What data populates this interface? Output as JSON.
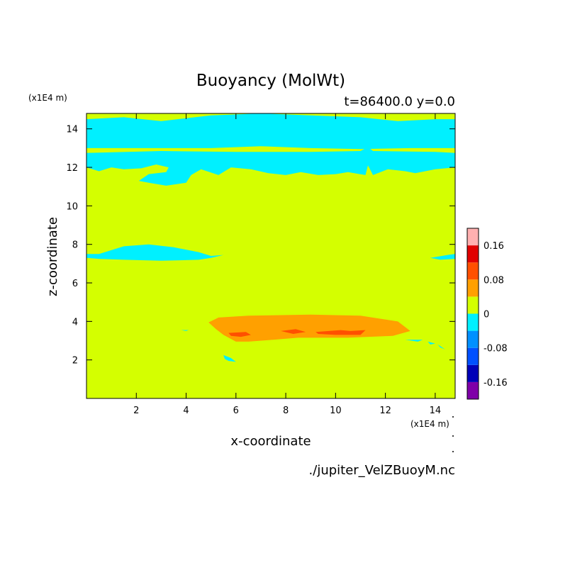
{
  "chart_data": {
    "type": "heatmap",
    "title": "Buoyancy (MolWt)",
    "subtitle": "t=86400.0 y=0.0",
    "xlabel": "x-coordinate",
    "ylabel": "z-coordinate",
    "x_scale_label": "(x1E4 m)",
    "y_scale_label": "(x1E4 m)",
    "xlim": [
      0,
      14.8
    ],
    "ylim": [
      0,
      14.8
    ],
    "x_ticks": [
      "2",
      "4",
      "6",
      "8",
      "10",
      "12",
      "14"
    ],
    "y_ticks": [
      "2",
      "4",
      "6",
      "8",
      "10",
      "12",
      "14"
    ],
    "x_tick_values": [
      2,
      4,
      6,
      8,
      10,
      12,
      14
    ],
    "y_tick_values": [
      2,
      4,
      6,
      8,
      10,
      12,
      14
    ],
    "source_file": "./jupiter_VelZBuoyM.nc",
    "grid": false,
    "legend": "right",
    "colorbar": {
      "levels": [
        -0.2,
        -0.16,
        -0.12,
        -0.08,
        -0.04,
        0,
        0.04,
        0.08,
        0.12,
        0.16,
        0.2
      ],
      "colors": [
        "#7f00a8",
        "#0000b8",
        "#0050ff",
        "#0090ff",
        "#00f0ff",
        "#d4ff00",
        "#ffa000",
        "#ff5000",
        "#e00000",
        "#ffb0b0"
      ],
      "tick_labels": [
        "0.16",
        "0.08",
        "0",
        "-0.08",
        "-0.16"
      ],
      "tick_values": [
        0.16,
        0.08,
        0,
        -0.08,
        -0.16
      ]
    },
    "background_value_color": "#d4ff00",
    "regions": [
      {
        "color": "#00f0ff",
        "value": "-0.04 to 0",
        "points": [
          [
            0,
            14.5
          ],
          [
            1.5,
            14.6
          ],
          [
            3,
            14.4
          ],
          [
            5,
            14.7
          ],
          [
            7,
            14.8
          ],
          [
            9,
            14.7
          ],
          [
            11,
            14.6
          ],
          [
            12.5,
            14.4
          ],
          [
            14,
            14.5
          ],
          [
            14.8,
            14.5
          ],
          [
            14.8,
            13.0
          ],
          [
            13,
            13.0
          ],
          [
            11,
            12.95
          ],
          [
            9,
            13.0
          ],
          [
            7,
            13.1
          ],
          [
            5,
            13.0
          ],
          [
            3,
            13.0
          ],
          [
            0,
            13.0
          ]
        ]
      },
      {
        "color": "#00f0ff",
        "value": "-0.04 to 0",
        "points": [
          [
            0,
            12.75
          ],
          [
            3,
            12.85
          ],
          [
            6,
            12.8
          ],
          [
            9,
            12.8
          ],
          [
            11,
            12.85
          ],
          [
            11.3,
            13.05
          ],
          [
            11.5,
            12.85
          ],
          [
            14,
            12.8
          ],
          [
            14.8,
            12.75
          ],
          [
            14.8,
            12.0
          ],
          [
            14,
            11.9
          ],
          [
            13.2,
            11.7
          ],
          [
            12.8,
            11.8
          ],
          [
            12.1,
            11.9
          ],
          [
            11.5,
            11.6
          ],
          [
            11.3,
            12.1
          ],
          [
            11.2,
            11.6
          ],
          [
            10.5,
            11.75
          ],
          [
            10,
            11.65
          ],
          [
            9.3,
            11.6
          ],
          [
            8.6,
            11.75
          ],
          [
            8,
            11.6
          ],
          [
            7.3,
            11.7
          ],
          [
            6.6,
            11.9
          ],
          [
            5.8,
            12.0
          ],
          [
            5.3,
            11.6
          ],
          [
            4.6,
            11.9
          ],
          [
            4.2,
            11.6
          ],
          [
            4.0,
            11.2
          ],
          [
            3.2,
            11.05
          ],
          [
            2.5,
            11.2
          ],
          [
            2.1,
            11.3
          ],
          [
            2.5,
            11.65
          ],
          [
            3.2,
            11.75
          ],
          [
            3.3,
            12.0
          ],
          [
            2.8,
            12.15
          ],
          [
            2.2,
            11.95
          ],
          [
            1.5,
            11.9
          ],
          [
            1.0,
            12.0
          ],
          [
            0.5,
            11.8
          ],
          [
            0,
            12.0
          ]
        ]
      },
      {
        "color": "#00f0ff",
        "value": "-0.04 to 0",
        "points": [
          [
            0.5,
            7.5
          ],
          [
            1.5,
            7.9
          ],
          [
            2.5,
            8.0
          ],
          [
            3.5,
            7.85
          ],
          [
            4.5,
            7.6
          ],
          [
            5.0,
            7.4
          ],
          [
            5.5,
            7.45
          ],
          [
            5.0,
            7.3
          ],
          [
            4.5,
            7.2
          ],
          [
            3.0,
            7.15
          ],
          [
            1.5,
            7.2
          ],
          [
            0.5,
            7.25
          ],
          [
            0,
            7.3
          ],
          [
            0,
            7.5
          ]
        ]
      },
      {
        "color": "#00f0ff",
        "value": "-0.04 to 0",
        "points": [
          [
            13.8,
            7.3
          ],
          [
            14.5,
            7.45
          ],
          [
            14.8,
            7.5
          ],
          [
            14.8,
            7.25
          ],
          [
            14.2,
            7.2
          ]
        ]
      },
      {
        "color": "#ffa000",
        "value": "0 to 0.04",
        "points": [
          [
            4.9,
            3.95
          ],
          [
            5.3,
            4.2
          ],
          [
            6.5,
            4.3
          ],
          [
            9,
            4.35
          ],
          [
            11,
            4.3
          ],
          [
            12.5,
            4.0
          ],
          [
            13.0,
            3.5
          ],
          [
            12.3,
            3.25
          ],
          [
            10.5,
            3.15
          ],
          [
            8.5,
            3.15
          ],
          [
            7.5,
            3.05
          ],
          [
            6.5,
            2.95
          ],
          [
            6.0,
            2.95
          ],
          [
            5.5,
            3.3
          ],
          [
            5.2,
            3.6
          ]
        ]
      },
      {
        "color": "#ff5000",
        "value": "0.04 to 0.08",
        "points": [
          [
            5.7,
            3.4
          ],
          [
            6.4,
            3.45
          ],
          [
            6.6,
            3.3
          ],
          [
            6.2,
            3.2
          ],
          [
            5.8,
            3.25
          ]
        ]
      },
      {
        "color": "#ff5000",
        "value": "0.04 to 0.08",
        "points": [
          [
            7.8,
            3.5
          ],
          [
            8.4,
            3.6
          ],
          [
            8.8,
            3.45
          ],
          [
            8.3,
            3.35
          ]
        ]
      },
      {
        "color": "#ff5000",
        "value": "0.04 to 0.08",
        "points": [
          [
            9.2,
            3.45
          ],
          [
            10.2,
            3.55
          ],
          [
            10.6,
            3.5
          ],
          [
            11.2,
            3.55
          ],
          [
            11.0,
            3.3
          ],
          [
            10.0,
            3.3
          ],
          [
            9.3,
            3.35
          ]
        ]
      },
      {
        "color": "#00f0ff",
        "value": "-0.04 to 0",
        "points": [
          [
            5.5,
            2.25
          ],
          [
            5.8,
            2.1
          ],
          [
            6.0,
            1.9
          ],
          [
            5.7,
            1.95
          ],
          [
            5.55,
            2.05
          ]
        ]
      },
      {
        "color": "#00f0ff",
        "value": "-0.04 to 0",
        "points": [
          [
            3.8,
            3.55
          ],
          [
            4.1,
            3.55
          ],
          [
            4.0,
            3.5
          ]
        ]
      },
      {
        "color": "#00f0ff",
        "value": "-0.04 to 0",
        "points": [
          [
            12.8,
            3.05
          ],
          [
            13.5,
            3.05
          ],
          [
            13.3,
            2.95
          ]
        ]
      },
      {
        "color": "#00f0ff",
        "value": "-0.04 to 0",
        "points": [
          [
            13.7,
            2.95
          ],
          [
            14.0,
            2.85
          ],
          [
            13.8,
            2.8
          ]
        ]
      },
      {
        "color": "#00f0ff",
        "value": "-0.04 to 0",
        "points": [
          [
            14.1,
            2.8
          ],
          [
            14.4,
            2.55
          ],
          [
            14.2,
            2.65
          ]
        ]
      }
    ]
  }
}
